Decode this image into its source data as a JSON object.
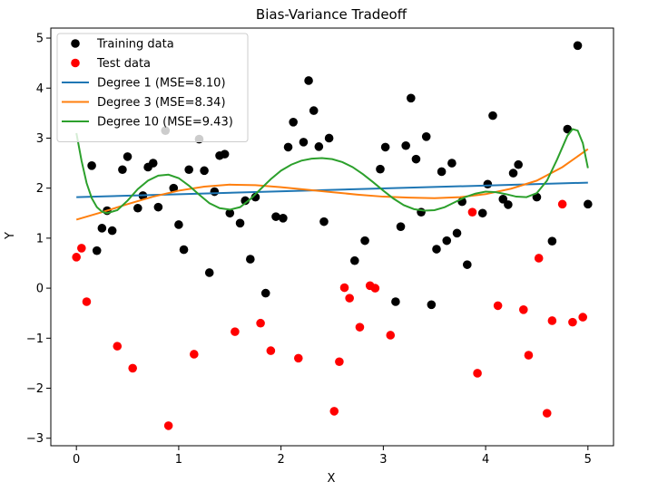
{
  "chart_data": {
    "type": "scatter",
    "title": "Bias-Variance Tradeoff",
    "xlabel": "X",
    "ylabel": "Y",
    "xlim": [
      -0.25,
      5.25
    ],
    "ylim": [
      -3.15,
      5.2
    ],
    "xticks": [
      0,
      1,
      2,
      3,
      4,
      5
    ],
    "yticks": [
      -3,
      -2,
      -1,
      0,
      1,
      2,
      3,
      4,
      5
    ],
    "grid": false,
    "legend_position": "top-left",
    "series": [
      {
        "name": "Training data",
        "kind": "scatter",
        "color": "#000000",
        "points": [
          [
            0.15,
            2.45
          ],
          [
            0.2,
            0.75
          ],
          [
            0.25,
            1.2
          ],
          [
            0.3,
            1.55
          ],
          [
            0.35,
            1.15
          ],
          [
            0.45,
            2.37
          ],
          [
            0.5,
            2.63
          ],
          [
            0.6,
            1.6
          ],
          [
            0.65,
            1.85
          ],
          [
            0.7,
            2.42
          ],
          [
            0.75,
            2.5
          ],
          [
            0.8,
            1.62
          ],
          [
            0.87,
            3.15
          ],
          [
            0.95,
            2.0
          ],
          [
            1.0,
            1.27
          ],
          [
            1.05,
            0.77
          ],
          [
            1.1,
            2.37
          ],
          [
            1.2,
            2.98
          ],
          [
            1.25,
            2.35
          ],
          [
            1.3,
            0.31
          ],
          [
            1.35,
            1.93
          ],
          [
            1.4,
            2.65
          ],
          [
            1.45,
            2.68
          ],
          [
            1.5,
            1.5
          ],
          [
            1.6,
            1.3
          ],
          [
            1.65,
            1.75
          ],
          [
            1.7,
            0.58
          ],
          [
            1.75,
            1.82
          ],
          [
            1.85,
            -0.1
          ],
          [
            1.95,
            1.43
          ],
          [
            2.02,
            1.4
          ],
          [
            2.07,
            2.82
          ],
          [
            2.12,
            3.32
          ],
          [
            2.22,
            2.92
          ],
          [
            2.27,
            4.15
          ],
          [
            2.32,
            3.55
          ],
          [
            2.37,
            2.83
          ],
          [
            2.42,
            1.33
          ],
          [
            2.47,
            3.0
          ],
          [
            2.72,
            0.55
          ],
          [
            2.82,
            0.95
          ],
          [
            2.97,
            2.38
          ],
          [
            3.02,
            2.82
          ],
          [
            3.12,
            -0.27
          ],
          [
            3.17,
            1.23
          ],
          [
            3.22,
            2.85
          ],
          [
            3.27,
            3.8
          ],
          [
            3.32,
            2.58
          ],
          [
            3.37,
            1.52
          ],
          [
            3.42,
            3.03
          ],
          [
            3.47,
            -0.33
          ],
          [
            3.52,
            0.78
          ],
          [
            3.57,
            2.33
          ],
          [
            3.62,
            0.95
          ],
          [
            3.67,
            2.5
          ],
          [
            3.72,
            1.1
          ],
          [
            3.77,
            1.73
          ],
          [
            3.82,
            0.47
          ],
          [
            3.97,
            1.5
          ],
          [
            4.02,
            2.08
          ],
          [
            4.07,
            3.45
          ],
          [
            4.17,
            1.78
          ],
          [
            4.22,
            1.67
          ],
          [
            4.27,
            2.3
          ],
          [
            4.32,
            2.47
          ],
          [
            4.5,
            1.82
          ],
          [
            4.65,
            0.94
          ],
          [
            4.8,
            3.18
          ],
          [
            4.9,
            4.85
          ],
          [
            5.0,
            1.68
          ]
        ]
      },
      {
        "name": "Test data",
        "kind": "scatter",
        "color": "#ff0000",
        "points": [
          [
            0.0,
            0.62
          ],
          [
            0.05,
            0.8
          ],
          [
            0.1,
            -0.27
          ],
          [
            0.4,
            -1.16
          ],
          [
            0.55,
            -1.6
          ],
          [
            0.9,
            -2.75
          ],
          [
            1.15,
            -1.32
          ],
          [
            1.55,
            -0.87
          ],
          [
            1.8,
            -0.7
          ],
          [
            1.9,
            -1.25
          ],
          [
            2.17,
            -1.4
          ],
          [
            2.52,
            -2.46
          ],
          [
            2.57,
            -1.47
          ],
          [
            2.62,
            0.01
          ],
          [
            2.67,
            -0.2
          ],
          [
            2.77,
            -0.78
          ],
          [
            2.87,
            0.05
          ],
          [
            2.92,
            0.0
          ],
          [
            3.07,
            -0.94
          ],
          [
            3.87,
            1.52
          ],
          [
            3.92,
            -1.7
          ],
          [
            4.12,
            -0.35
          ],
          [
            4.37,
            -0.43
          ],
          [
            4.42,
            -1.34
          ],
          [
            4.52,
            0.6
          ],
          [
            4.6,
            -2.5
          ],
          [
            4.65,
            -0.65
          ],
          [
            4.75,
            1.68
          ],
          [
            4.85,
            -0.68
          ],
          [
            4.95,
            -0.58
          ]
        ]
      },
      {
        "name": "Degree 1 (MSE=8.10)",
        "kind": "line",
        "color": "#1f77b4",
        "points": [
          [
            0.0,
            1.82
          ],
          [
            5.0,
            2.11
          ]
        ]
      },
      {
        "name": "Degree 3 (MSE=8.34)",
        "kind": "line",
        "color": "#ff7f0e",
        "points": [
          [
            0.0,
            1.37
          ],
          [
            0.25,
            1.52
          ],
          [
            0.5,
            1.68
          ],
          [
            0.75,
            1.83
          ],
          [
            1.0,
            1.95
          ],
          [
            1.25,
            2.03
          ],
          [
            1.5,
            2.07
          ],
          [
            1.75,
            2.06
          ],
          [
            2.0,
            2.02
          ],
          [
            2.25,
            1.97
          ],
          [
            2.5,
            1.92
          ],
          [
            2.75,
            1.87
          ],
          [
            3.0,
            1.83
          ],
          [
            3.25,
            1.81
          ],
          [
            3.5,
            1.8
          ],
          [
            3.75,
            1.82
          ],
          [
            4.0,
            1.88
          ],
          [
            4.25,
            1.99
          ],
          [
            4.5,
            2.15
          ],
          [
            4.75,
            2.42
          ],
          [
            5.0,
            2.78
          ]
        ]
      },
      {
        "name": "Degree 10 (MSE=9.43)",
        "kind": "line",
        "color": "#2ca02c",
        "points": [
          [
            0.0,
            3.1
          ],
          [
            0.05,
            2.55
          ],
          [
            0.1,
            2.1
          ],
          [
            0.15,
            1.8
          ],
          [
            0.2,
            1.62
          ],
          [
            0.25,
            1.53
          ],
          [
            0.3,
            1.5
          ],
          [
            0.4,
            1.56
          ],
          [
            0.5,
            1.75
          ],
          [
            0.6,
            1.98
          ],
          [
            0.7,
            2.15
          ],
          [
            0.8,
            2.25
          ],
          [
            0.9,
            2.27
          ],
          [
            1.0,
            2.2
          ],
          [
            1.1,
            2.05
          ],
          [
            1.2,
            1.87
          ],
          [
            1.3,
            1.7
          ],
          [
            1.4,
            1.6
          ],
          [
            1.5,
            1.57
          ],
          [
            1.6,
            1.62
          ],
          [
            1.7,
            1.78
          ],
          [
            1.8,
            1.98
          ],
          [
            1.9,
            2.18
          ],
          [
            2.0,
            2.35
          ],
          [
            2.1,
            2.47
          ],
          [
            2.2,
            2.55
          ],
          [
            2.3,
            2.59
          ],
          [
            2.4,
            2.6
          ],
          [
            2.5,
            2.58
          ],
          [
            2.6,
            2.52
          ],
          [
            2.7,
            2.42
          ],
          [
            2.8,
            2.28
          ],
          [
            2.9,
            2.12
          ],
          [
            3.0,
            1.95
          ],
          [
            3.1,
            1.79
          ],
          [
            3.2,
            1.66
          ],
          [
            3.3,
            1.58
          ],
          [
            3.4,
            1.55
          ],
          [
            3.5,
            1.56
          ],
          [
            3.6,
            1.62
          ],
          [
            3.7,
            1.72
          ],
          [
            3.8,
            1.82
          ],
          [
            3.9,
            1.89
          ],
          [
            4.0,
            1.93
          ],
          [
            4.1,
            1.92
          ],
          [
            4.2,
            1.88
          ],
          [
            4.3,
            1.83
          ],
          [
            4.4,
            1.82
          ],
          [
            4.5,
            1.9
          ],
          [
            4.6,
            2.15
          ],
          [
            4.7,
            2.58
          ],
          [
            4.8,
            3.05
          ],
          [
            4.85,
            3.18
          ],
          [
            4.9,
            3.15
          ],
          [
            4.95,
            2.9
          ],
          [
            5.0,
            2.4
          ]
        ]
      }
    ]
  }
}
